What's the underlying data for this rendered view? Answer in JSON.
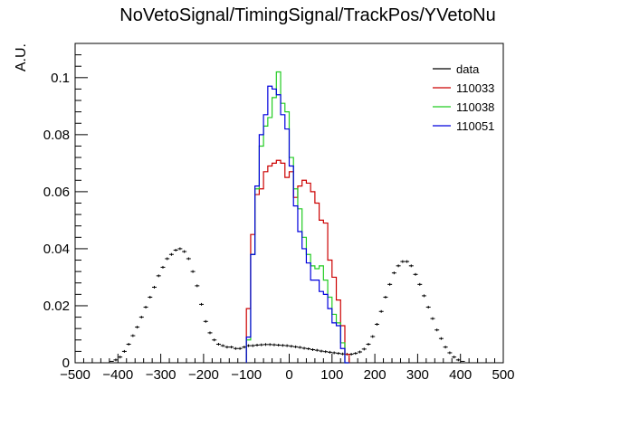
{
  "chart_data": {
    "type": "histogram",
    "title": "NoVetoSignal/TimingSignal/TrackPos/YVetoNu",
    "xlabel": "",
    "ylabel": "A.U.",
    "xlim": [
      -500,
      500
    ],
    "ylim": [
      0,
      0.112
    ],
    "x_ticks": [
      -500,
      -400,
      -300,
      -200,
      -100,
      0,
      100,
      200,
      300,
      400,
      500
    ],
    "x_tick_labels": [
      "−500",
      "−400",
      "−300",
      "−200",
      "−100",
      "0",
      "100",
      "200",
      "300",
      "400",
      "500"
    ],
    "y_ticks": [
      0,
      0.02,
      0.04,
      0.06,
      0.08,
      0.1
    ],
    "y_tick_labels": [
      "0",
      "0.02",
      "0.04",
      "0.06",
      "0.08",
      "0.1"
    ],
    "bin_width": 10,
    "legend_position": "top-right",
    "series": [
      {
        "name": "data",
        "kind": "points",
        "color": "#000000",
        "x": [
          -495,
          -485,
          -475,
          -465,
          -455,
          -445,
          -435,
          -425,
          -415,
          -405,
          -395,
          -385,
          -375,
          -365,
          -355,
          -345,
          -335,
          -325,
          -315,
          -305,
          -295,
          -285,
          -275,
          -265,
          -255,
          -245,
          -235,
          -225,
          -215,
          -205,
          -195,
          -185,
          -175,
          -165,
          -155,
          -145,
          -135,
          -125,
          -115,
          -105,
          -95,
          -85,
          -75,
          -65,
          -55,
          -45,
          -35,
          -25,
          -15,
          -5,
          5,
          15,
          25,
          35,
          45,
          55,
          65,
          75,
          85,
          95,
          105,
          115,
          125,
          135,
          145,
          155,
          165,
          175,
          185,
          195,
          205,
          215,
          225,
          235,
          245,
          255,
          265,
          275,
          285,
          295,
          305,
          315,
          325,
          335,
          345,
          355,
          365,
          375,
          385,
          395,
          405,
          415,
          425,
          435,
          445,
          455,
          465,
          475,
          485,
          495
        ],
        "values": [
          0,
          0,
          0,
          0,
          0,
          0,
          0,
          0,
          0.0005,
          0.001,
          0.002,
          0.004,
          0.0065,
          0.0095,
          0.0125,
          0.016,
          0.0195,
          0.023,
          0.0265,
          0.0305,
          0.0335,
          0.0365,
          0.038,
          0.0395,
          0.04,
          0.039,
          0.0365,
          0.032,
          0.027,
          0.0205,
          0.0145,
          0.0105,
          0.008,
          0.0065,
          0.006,
          0.0055,
          0.0055,
          0.005,
          0.005,
          0.0055,
          0.006,
          0.006,
          0.0062,
          0.0063,
          0.0064,
          0.0064,
          0.0063,
          0.0062,
          0.0061,
          0.006,
          0.0058,
          0.0056,
          0.0054,
          0.0051,
          0.0049,
          0.0046,
          0.0044,
          0.0041,
          0.0039,
          0.0037,
          0.0035,
          0.0033,
          0.0031,
          0.003,
          0.003,
          0.0033,
          0.0038,
          0.0048,
          0.0065,
          0.0092,
          0.0135,
          0.018,
          0.023,
          0.0275,
          0.0315,
          0.034,
          0.0355,
          0.0355,
          0.034,
          0.031,
          0.0275,
          0.0235,
          0.0195,
          0.0155,
          0.0115,
          0.0085,
          0.0055,
          0.0035,
          0.002,
          0.001,
          0.0005,
          0,
          0,
          0,
          0,
          0,
          0,
          0,
          0,
          0
        ]
      },
      {
        "name": "110033",
        "kind": "step",
        "color": "#cc0000",
        "bin_start": -100,
        "values": [
          0.019,
          0.045,
          0.059,
          0.061,
          0.067,
          0.069,
          0.07,
          0.071,
          0.07,
          0.065,
          0.067,
          0.058,
          0.062,
          0.064,
          0.063,
          0.06,
          0.056,
          0.05,
          0.049,
          0.036,
          0.03,
          0.022,
          0.013,
          0.003
        ]
      },
      {
        "name": "110038",
        "kind": "step",
        "color": "#22cc22",
        "bin_start": -100,
        "values": [
          0.008,
          0.038,
          0.061,
          0.076,
          0.083,
          0.086,
          0.093,
          0.102,
          0.091,
          0.088,
          0.072,
          0.061,
          0.054,
          0.044,
          0.038,
          0.034,
          0.033,
          0.034,
          0.029,
          0.023,
          0.017,
          0.014,
          0.007,
          0
        ]
      },
      {
        "name": "110051",
        "kind": "step",
        "color": "#0000dd",
        "bin_start": -100,
        "values": [
          0.009,
          0.038,
          0.062,
          0.08,
          0.087,
          0.097,
          0.096,
          0.094,
          0.087,
          0.082,
          0.069,
          0.055,
          0.046,
          0.04,
          0.035,
          0.029,
          0.029,
          0.025,
          0.024,
          0.019,
          0.014,
          0.013,
          0.005,
          0
        ]
      }
    ]
  }
}
